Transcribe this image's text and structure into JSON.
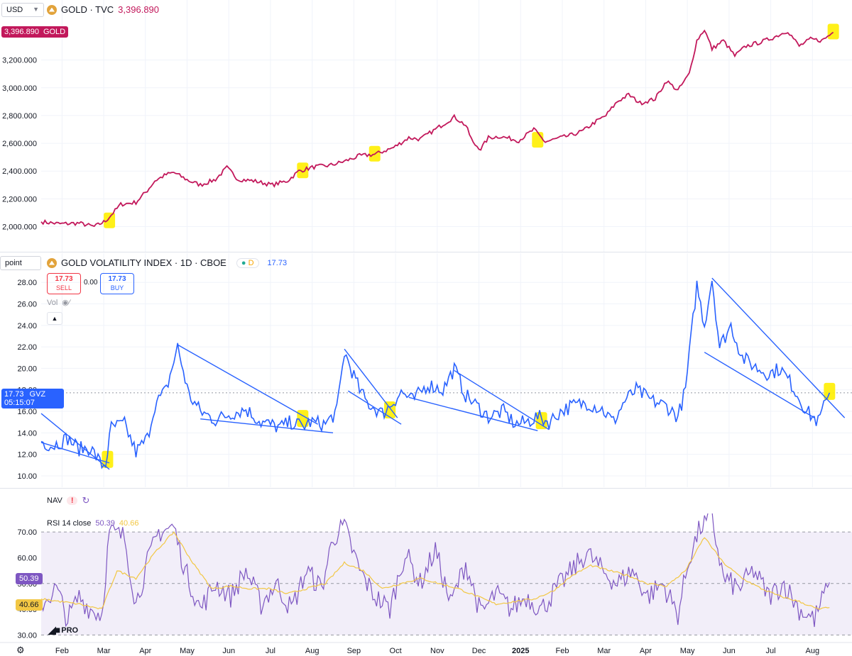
{
  "colors": {
    "gold": "#c2185b",
    "gvz": "#2962ff",
    "rsi": "#7e57c2",
    "rsi_ma": "#f2c744",
    "highlight": "#ffee00",
    "grid": "#f0f3fa"
  },
  "header": {
    "unit": "USD",
    "symbol_title": "GOLD · TVC",
    "symbol_value": "3,396.890"
  },
  "gold_panel": {
    "price_tag": "3,396.890",
    "price_tag_symbol": "GOLD"
  },
  "gvz_panel": {
    "unit": "point",
    "title": "GOLD VOLATILITY INDEX · 1D · CBOE",
    "badge": "D",
    "value": "17.73",
    "sell_price": "17.73",
    "sell_label": "SELL",
    "spread": "0.00",
    "buy_price": "17.73",
    "buy_label": "BUY",
    "vol_label": "Vol",
    "price_tag": "17.73",
    "price_tag_symbol": "GVZ",
    "countdown": "05:15:07"
  },
  "nav_panel": {
    "label": "NAV",
    "warning": "!"
  },
  "rsi_panel": {
    "title": "RSI 14 close",
    "rsi_value": "50.39",
    "ma_value": "40.66"
  },
  "logo": {
    "text": "PRO"
  },
  "chart_data": [
    {
      "type": "line",
      "title": "GOLD · TVC",
      "x_domain": [
        0,
        19
      ],
      "ylim": [
        1870,
        3530
      ],
      "yticks": [
        "2,000.000",
        "2,200.000",
        "2,400.000",
        "2,600.000",
        "2,800.000",
        "3,000.000",
        "3,200.000"
      ],
      "ytick_values": [
        2000,
        2200,
        2400,
        2600,
        2800,
        3000,
        3200
      ],
      "x_anchors": [
        [
          0,
          2035
        ],
        [
          0.5,
          2020
        ],
        [
          1,
          2025
        ],
        [
          1.4,
          2000
        ],
        [
          1.7,
          2040
        ],
        [
          2.1,
          2160
        ],
        [
          2.5,
          2175
        ],
        [
          2.8,
          2260
        ],
        [
          3,
          2330
        ],
        [
          3.3,
          2375
        ],
        [
          3.5,
          2390
        ],
        [
          3.9,
          2330
        ],
        [
          4.2,
          2300
        ],
        [
          4.6,
          2340
        ],
        [
          4.9,
          2425
        ],
        [
          5.2,
          2340
        ],
        [
          5.6,
          2330
        ],
        [
          6.1,
          2300
        ],
        [
          6.5,
          2330
        ],
        [
          6.8,
          2400
        ],
        [
          7.2,
          2430
        ],
        [
          7.6,
          2440
        ],
        [
          8,
          2470
        ],
        [
          8.4,
          2510
        ],
        [
          8.8,
          2520
        ],
        [
          9.3,
          2570
        ],
        [
          9.7,
          2640
        ],
        [
          10,
          2630
        ],
        [
          10.4,
          2700
        ],
        [
          10.9,
          2790
        ],
        [
          11.2,
          2730
        ],
        [
          11.4,
          2600
        ],
        [
          11.6,
          2560
        ],
        [
          11.8,
          2640
        ],
        [
          12.1,
          2650
        ],
        [
          12.6,
          2620
        ],
        [
          13,
          2700
        ],
        [
          13.3,
          2610
        ],
        [
          13.7,
          2640
        ],
        [
          14,
          2660
        ],
        [
          14.3,
          2690
        ],
        [
          14.6,
          2750
        ],
        [
          14.9,
          2800
        ],
        [
          15.2,
          2900
        ],
        [
          15.5,
          2950
        ],
        [
          15.8,
          2890
        ],
        [
          16.2,
          2920
        ],
        [
          16.5,
          3050
        ],
        [
          16.8,
          2980
        ],
        [
          17.1,
          3100
        ],
        [
          17.3,
          3340
        ],
        [
          17.5,
          3420
        ],
        [
          17.7,
          3280
        ],
        [
          18,
          3340
        ],
        [
          18.3,
          3230
        ],
        [
          18.6,
          3300
        ],
        [
          19,
          3330
        ],
        [
          19.3,
          3360
        ],
        [
          19.7,
          3410
        ],
        [
          20,
          3300
        ],
        [
          20.3,
          3350
        ],
        [
          20.6,
          3340
        ],
        [
          20.9,
          3400
        ]
      ],
      "highlights": [
        [
          1.8,
          2040
        ],
        [
          6.9,
          2400
        ],
        [
          8.8,
          2520
        ],
        [
          13.1,
          2620
        ],
        [
          20.9,
          3400
        ]
      ]
    },
    {
      "type": "line",
      "title": "GOLD VOLATILITY INDEX · 1D · CBOE",
      "ylim": [
        9.6,
        29.4
      ],
      "yticks": [
        "10.00",
        "12.00",
        "14.00",
        "16.00",
        "18.00",
        "20.00",
        "22.00",
        "24.00",
        "26.00",
        "28.00"
      ],
      "ytick_values": [
        10,
        12,
        14,
        16,
        18,
        20,
        22,
        24,
        26,
        28
      ],
      "anchors": [
        [
          0,
          13.2
        ],
        [
          0.3,
          12.8
        ],
        [
          0.7,
          13.5
        ],
        [
          1,
          12.5
        ],
        [
          1.3,
          12.6
        ],
        [
          1.6,
          11.0
        ],
        [
          1.7,
          11.1
        ],
        [
          1.85,
          14.5
        ],
        [
          2.2,
          14.8
        ],
        [
          2.5,
          12.2
        ],
        [
          2.8,
          13.5
        ],
        [
          3.0,
          16.6
        ],
        [
          3.3,
          18.0
        ],
        [
          3.6,
          22.0
        ],
        [
          3.9,
          17.5
        ],
        [
          4.2,
          16.0
        ],
        [
          4.6,
          15.2
        ],
        [
          5.0,
          15.8
        ],
        [
          5.4,
          16.2
        ],
        [
          5.8,
          15.0
        ],
        [
          6.3,
          14.5
        ],
        [
          6.6,
          15.0
        ],
        [
          6.9,
          14.6
        ],
        [
          7.1,
          15.0
        ],
        [
          7.5,
          14.8
        ],
        [
          7.8,
          16.0
        ],
        [
          8.0,
          21.5
        ],
        [
          8.4,
          18.0
        ],
        [
          8.6,
          16.8
        ],
        [
          9.0,
          15.8
        ],
        [
          9.2,
          16.5
        ],
        [
          9.5,
          17.8
        ],
        [
          9.8,
          17.0
        ],
        [
          10.2,
          18.5
        ],
        [
          10.6,
          18.0
        ],
        [
          10.9,
          20.0
        ],
        [
          11.2,
          17.5
        ],
        [
          11.5,
          16.5
        ],
        [
          11.8,
          15.5
        ],
        [
          12.2,
          16.0
        ],
        [
          12.5,
          14.8
        ],
        [
          12.8,
          15.0
        ],
        [
          13.1,
          15.5
        ],
        [
          13.4,
          15.0
        ],
        [
          13.7,
          16.0
        ],
        [
          14.0,
          16.5
        ],
        [
          14.4,
          16.8
        ],
        [
          14.8,
          16.2
        ],
        [
          15.1,
          15.0
        ],
        [
          15.4,
          17.0
        ],
        [
          15.7,
          18.0
        ],
        [
          16.1,
          17.0
        ],
        [
          16.5,
          16.5
        ],
        [
          16.8,
          15.5
        ],
        [
          17.0,
          18.0
        ],
        [
          17.3,
          27.8
        ],
        [
          17.5,
          24.0
        ],
        [
          17.7,
          28.4
        ],
        [
          17.9,
          22.0
        ],
        [
          18.2,
          24.0
        ],
        [
          18.5,
          21.0
        ],
        [
          18.9,
          20.0
        ],
        [
          19.2,
          19.5
        ],
        [
          19.5,
          20.0
        ],
        [
          19.8,
          18.5
        ],
        [
          20.2,
          16.0
        ],
        [
          20.5,
          15.0
        ],
        [
          20.8,
          17.73
        ]
      ],
      "trendlines": [
        [
          [
            0,
            15.8
          ],
          [
            1.8,
            10.6
          ]
        ],
        [
          [
            0,
            13.1
          ],
          [
            1.8,
            11.2
          ]
        ],
        [
          [
            3.6,
            22.2
          ],
          [
            7.3,
            14.8
          ]
        ],
        [
          [
            4.2,
            15.3
          ],
          [
            7.7,
            14.0
          ]
        ],
        [
          [
            8.0,
            21.8
          ],
          [
            9.4,
            15.4
          ]
        ],
        [
          [
            8.1,
            17.9
          ],
          [
            9.5,
            14.8
          ]
        ],
        [
          [
            10.9,
            19.8
          ],
          [
            13.4,
            14.3
          ]
        ],
        [
          [
            9.7,
            17.3
          ],
          [
            13.1,
            14.2
          ]
        ],
        [
          [
            17.7,
            28.4
          ],
          [
            21.2,
            15.4
          ]
        ],
        [
          [
            17.5,
            21.5
          ],
          [
            20.4,
            15.4
          ]
        ]
      ],
      "highlights": [
        [
          1.75,
          11.4
        ],
        [
          6.9,
          15.2
        ],
        [
          9.2,
          16.0
        ],
        [
          13.2,
          15.0
        ],
        [
          20.8,
          17.73
        ]
      ]
    },
    {
      "type": "line",
      "title": "RSI 14 close",
      "ylim": [
        29,
        75
      ],
      "yticks": [
        "30.00",
        "40.00",
        "50.00",
        "60.00",
        "70.00"
      ],
      "ytick_values": [
        30,
        40,
        50,
        60,
        70
      ],
      "band": [
        30,
        70
      ],
      "xticks": [
        "Feb",
        "Mar",
        "Apr",
        "May",
        "Jun",
        "Jul",
        "Aug",
        "Sep",
        "Oct",
        "Nov",
        "Dec",
        "2025",
        "Feb",
        "Mar",
        "Apr",
        "May",
        "Jun",
        "Jul",
        "Aug"
      ],
      "rsi_anchors": [
        [
          0,
          42
        ],
        [
          0.4,
          48
        ],
        [
          0.7,
          36
        ],
        [
          1.0,
          45
        ],
        [
          1.3,
          40
        ],
        [
          1.6,
          38
        ],
        [
          1.8,
          70
        ],
        [
          2.2,
          68
        ],
        [
          2.5,
          42
        ],
        [
          2.8,
          58
        ],
        [
          3.1,
          70
        ],
        [
          3.5,
          72
        ],
        [
          3.8,
          55
        ],
        [
          4.2,
          40
        ],
        [
          4.6,
          50
        ],
        [
          5.0,
          45
        ],
        [
          5.4,
          55
        ],
        [
          5.8,
          42
        ],
        [
          6.2,
          50
        ],
        [
          6.6,
          40
        ],
        [
          7.0,
          55
        ],
        [
          7.4,
          48
        ],
        [
          7.7,
          68
        ],
        [
          8.0,
          72
        ],
        [
          8.4,
          55
        ],
        [
          8.8,
          45
        ],
        [
          9.2,
          40
        ],
        [
          9.6,
          62
        ],
        [
          10.0,
          50
        ],
        [
          10.4,
          63
        ],
        [
          10.8,
          42
        ],
        [
          11.2,
          58
        ],
        [
          11.6,
          38
        ],
        [
          12.0,
          46
        ],
        [
          12.4,
          40
        ],
        [
          12.8,
          45
        ],
        [
          13.2,
          40
        ],
        [
          13.6,
          48
        ],
        [
          14.0,
          55
        ],
        [
          14.4,
          62
        ],
        [
          14.8,
          55
        ],
        [
          15.2,
          50
        ],
        [
          15.6,
          55
        ],
        [
          16.0,
          45
        ],
        [
          16.4,
          50
        ],
        [
          16.8,
          38
        ],
        [
          17.1,
          60
        ],
        [
          17.4,
          72
        ],
        [
          17.7,
          75
        ],
        [
          18.0,
          52
        ],
        [
          18.4,
          48
        ],
        [
          18.8,
          55
        ],
        [
          19.2,
          45
        ],
        [
          19.6,
          50
        ],
        [
          20.0,
          40
        ],
        [
          20.4,
          36
        ],
        [
          20.8,
          50.39
        ]
      ],
      "ma_anchors": [
        [
          0,
          44
        ],
        [
          1.0,
          42
        ],
        [
          1.6,
          40
        ],
        [
          2.0,
          55
        ],
        [
          2.5,
          52
        ],
        [
          3.0,
          62
        ],
        [
          3.5,
          70
        ],
        [
          4.0,
          58
        ],
        [
          4.5,
          48
        ],
        [
          5.0,
          49
        ],
        [
          5.5,
          48
        ],
        [
          6.0,
          48
        ],
        [
          6.5,
          46
        ],
        [
          7.0,
          48
        ],
        [
          7.5,
          50
        ],
        [
          8.0,
          58
        ],
        [
          8.5,
          55
        ],
        [
          9.0,
          48
        ],
        [
          9.5,
          50
        ],
        [
          10.0,
          52
        ],
        [
          10.5,
          50
        ],
        [
          11.0,
          48
        ],
        [
          11.5,
          45
        ],
        [
          12.0,
          42
        ],
        [
          12.5,
          43
        ],
        [
          13.0,
          44
        ],
        [
          13.5,
          47
        ],
        [
          14.0,
          53
        ],
        [
          14.5,
          57
        ],
        [
          15.0,
          55
        ],
        [
          15.5,
          53
        ],
        [
          16.0,
          50
        ],
        [
          16.5,
          49
        ],
        [
          17.0,
          55
        ],
        [
          17.5,
          68
        ],
        [
          18.0,
          58
        ],
        [
          18.5,
          52
        ],
        [
          19.0,
          48
        ],
        [
          19.5,
          45
        ],
        [
          20.0,
          43
        ],
        [
          20.5,
          40
        ],
        [
          20.8,
          40.66
        ]
      ]
    }
  ]
}
